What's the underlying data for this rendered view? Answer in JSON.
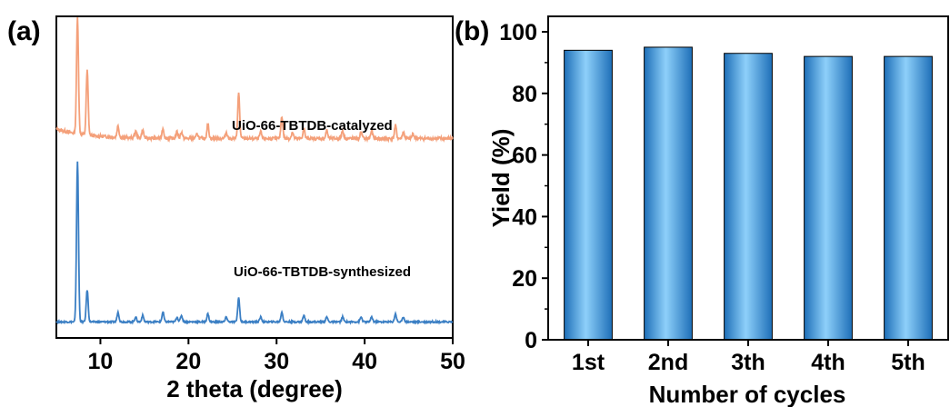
{
  "chart_data": [
    {
      "type": "line",
      "panel_label": "(a)",
      "title": "",
      "xlabel": "2 theta (degree)",
      "ylabel": "",
      "xlim": [
        5,
        50
      ],
      "xticks": [
        10,
        20,
        30,
        40,
        50
      ],
      "yticks_shown": false,
      "grid": false,
      "series": [
        {
          "name": "UiO-66-TBTDB-catalyzed",
          "color": "#F4A07A",
          "baseline": 0.62,
          "slope": 0.0,
          "peaks": [
            [
              7.4,
              0.36
            ],
            [
              8.5,
              0.2
            ],
            [
              12.0,
              0.035
            ],
            [
              14.0,
              0.02
            ],
            [
              14.8,
              0.025
            ],
            [
              17.1,
              0.03
            ],
            [
              18.7,
              0.02
            ],
            [
              19.2,
              0.02
            ],
            [
              21.0,
              0.015
            ],
            [
              22.2,
              0.045
            ],
            [
              24.3,
              0.02
            ],
            [
              25.7,
              0.14
            ],
            [
              28.2,
              0.02
            ],
            [
              30.6,
              0.07
            ],
            [
              31.8,
              0.02
            ],
            [
              33.1,
              0.03
            ],
            [
              35.7,
              0.025
            ],
            [
              37.5,
              0.025
            ],
            [
              39.6,
              0.02
            ],
            [
              40.8,
              0.025
            ],
            [
              43.5,
              0.04
            ],
            [
              44.4,
              0.02
            ],
            [
              45.5,
              0.015
            ]
          ]
        },
        {
          "name": "UiO-66-TBTDB-synthesized",
          "color": "#3B7FC4",
          "baseline": 0.05,
          "slope": 0.0,
          "peaks": [
            [
              7.4,
              0.5
            ],
            [
              8.5,
              0.1
            ],
            [
              12.0,
              0.03
            ],
            [
              14.0,
              0.015
            ],
            [
              14.8,
              0.02
            ],
            [
              17.1,
              0.03
            ],
            [
              18.7,
              0.015
            ],
            [
              19.2,
              0.02
            ],
            [
              22.2,
              0.025
            ],
            [
              24.3,
              0.015
            ],
            [
              25.7,
              0.075
            ],
            [
              28.2,
              0.015
            ],
            [
              30.6,
              0.03
            ],
            [
              33.1,
              0.02
            ],
            [
              35.7,
              0.015
            ],
            [
              37.5,
              0.015
            ],
            [
              39.6,
              0.015
            ],
            [
              40.8,
              0.015
            ],
            [
              43.5,
              0.025
            ],
            [
              44.4,
              0.015
            ]
          ]
        }
      ]
    },
    {
      "type": "bar",
      "panel_label": "(b)",
      "title": "",
      "xlabel": "Number of cycles",
      "ylabel": "Yield (%)",
      "ylim": [
        0,
        100
      ],
      "yticks": [
        0,
        20,
        40,
        60,
        80,
        100
      ],
      "grid": false,
      "categories": [
        "1st",
        "2nd",
        "3th",
        "4th",
        "5th"
      ],
      "values": [
        94,
        95,
        93,
        92,
        92
      ],
      "bar_color": "#3A9BE0"
    }
  ]
}
